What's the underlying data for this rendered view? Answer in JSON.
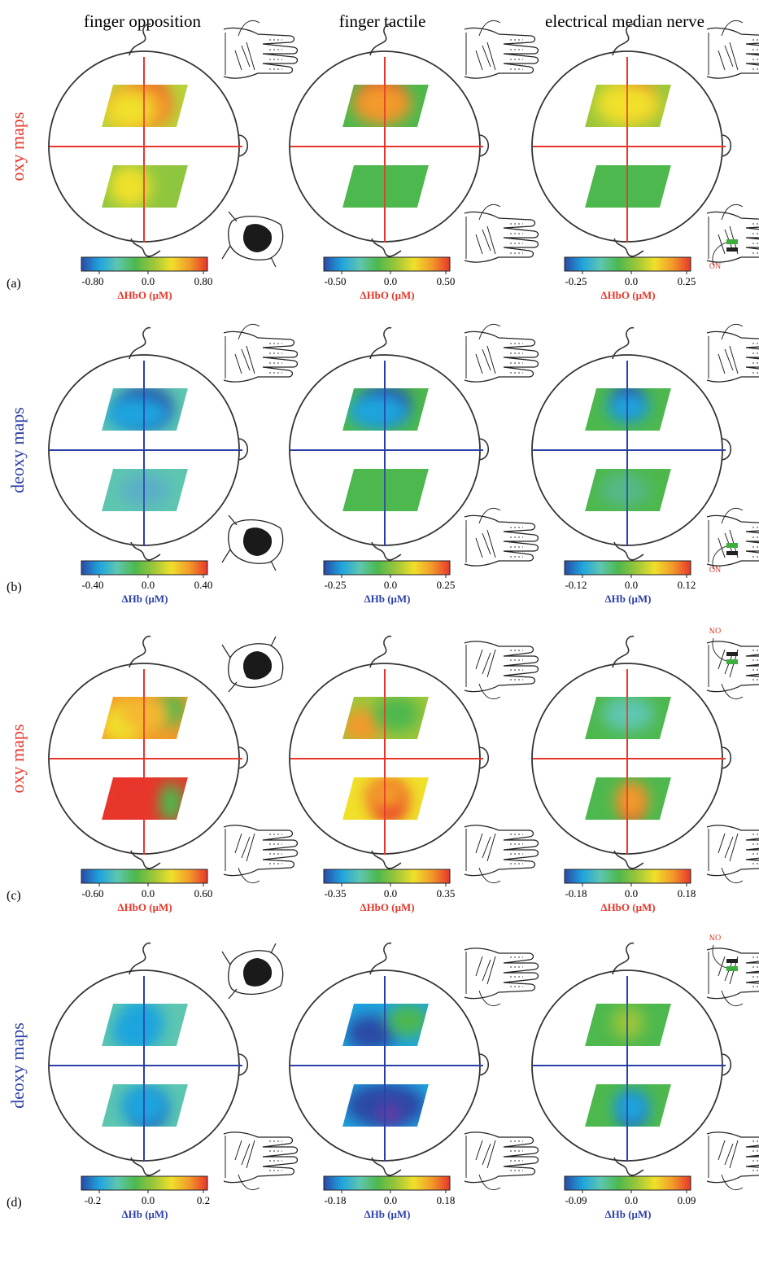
{
  "columns": [
    "finger opposition",
    "finger tactile",
    "electrical median nerve"
  ],
  "rows": [
    {
      "panel": "(a)",
      "map_label": "oxy maps",
      "color": "#e8362a",
      "unit": "ΔHbO (μM)",
      "scales": [
        [
          "-0.80",
          "0.0",
          "0.80"
        ],
        [
          "-0.50",
          "0.0",
          "0.50"
        ],
        [
          "-0.25",
          "0.0",
          "0.25"
        ]
      ],
      "stim_labels": [
        "",
        "",
        "ON"
      ]
    },
    {
      "panel": "(b)",
      "map_label": "deoxy maps",
      "color": "#2b3fa8",
      "unit": "ΔHb (μM)",
      "scales": [
        [
          "-0.40",
          "0.0",
          "0.40"
        ],
        [
          "-0.25",
          "0.0",
          "0.25"
        ],
        [
          "-0.12",
          "0.0",
          "0.12"
        ]
      ],
      "stim_labels": [
        "",
        "",
        "ON"
      ]
    },
    {
      "panel": "(c)",
      "map_label": "oxy maps",
      "color": "#e8362a",
      "unit": "ΔHbO (μM)",
      "scales": [
        [
          "-0.60",
          "0.0",
          "0.60"
        ],
        [
          "-0.35",
          "0.0",
          "0.35"
        ],
        [
          "-0.18",
          "0.0",
          "0.18"
        ]
      ],
      "stim_labels": [
        "",
        "",
        "ON"
      ]
    },
    {
      "panel": "(d)",
      "map_label": "deoxy maps",
      "color": "#2b3fa8",
      "unit": "ΔHb (μM)",
      "scales": [
        [
          "-0.2",
          "0.0",
          "0.2"
        ],
        [
          "-0.18",
          "0.0",
          "0.18"
        ],
        [
          "-0.09",
          "0.0",
          "0.09"
        ]
      ],
      "stim_labels": [
        "",
        "",
        "ON"
      ]
    }
  ],
  "colormap": [
    "#2a4aa6",
    "#1fa4de",
    "#5ec6b0",
    "#4db84d",
    "#9cc63a",
    "#f0e02a",
    "#f29a2a",
    "#e8362a"
  ]
}
